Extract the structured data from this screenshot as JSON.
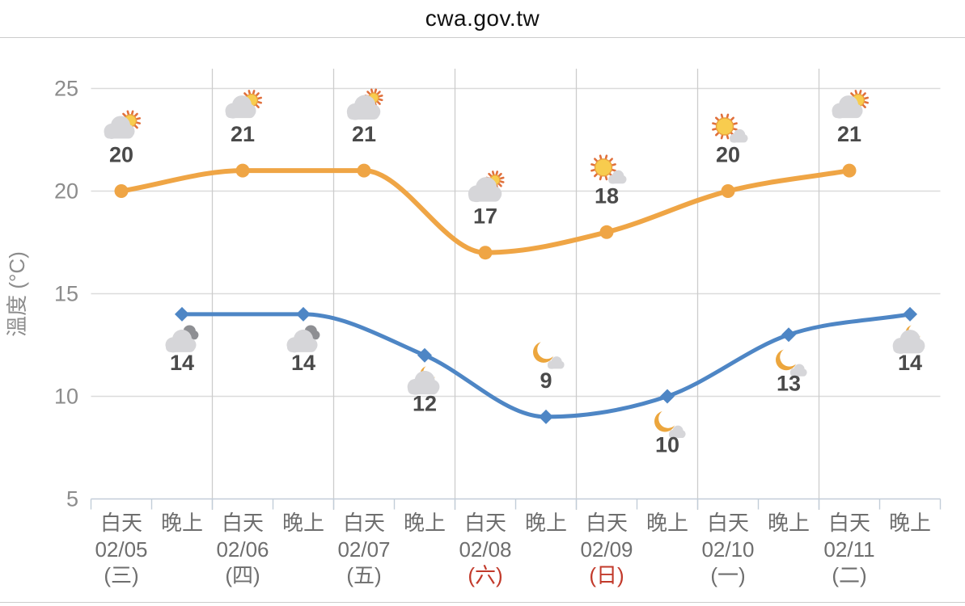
{
  "header": {
    "title": "cwa.gov.tw"
  },
  "colors": {
    "day_line": "#EFA545",
    "night_line": "#4E86C5",
    "grid_horizontal": "#DBDBDB",
    "grid_vertical": "#CCCCCC",
    "axis_line": "#C2CDD8",
    "ytick_text": "#8C8C8C",
    "xlabel_text": "#6E6E6E",
    "weekend_red": "#C23A2B",
    "value_text": "#4A4A4A",
    "sun_core": "#F8CC4E",
    "sun_rays": "#E0703C",
    "moon": "#ECA63D",
    "cloud_light": "#D6D6D9",
    "cloud_dark": "#8E8F93"
  },
  "chart_data": {
    "type": "line",
    "title": "cwa.gov.tw",
    "ylabel": "溫度 (°C)",
    "ylim": [
      5,
      25
    ],
    "yticks": [
      5,
      10,
      15,
      20,
      25
    ],
    "grid": "horizontal gridlines at yticks; vertical separators between days; no legend",
    "columns": [
      {
        "period": "白天",
        "date": "02/05",
        "weekday": "(三)",
        "weekend": false
      },
      {
        "period": "晚上"
      },
      {
        "period": "白天",
        "date": "02/06",
        "weekday": "(四)",
        "weekend": false
      },
      {
        "period": "晚上"
      },
      {
        "period": "白天",
        "date": "02/07",
        "weekday": "(五)",
        "weekend": false
      },
      {
        "period": "晚上"
      },
      {
        "period": "白天",
        "date": "02/08",
        "weekday": "(六)",
        "weekend": true
      },
      {
        "period": "晚上"
      },
      {
        "period": "白天",
        "date": "02/09",
        "weekday": "(日)",
        "weekend": true
      },
      {
        "period": "晚上"
      },
      {
        "period": "白天",
        "date": "02/10",
        "weekday": "(一)",
        "weekend": false
      },
      {
        "period": "晚上"
      },
      {
        "period": "白天",
        "date": "02/11",
        "weekday": "(二)",
        "weekend": false
      },
      {
        "period": "晚上"
      }
    ],
    "series": [
      {
        "name": "day-temperature",
        "label": "白天",
        "marker": "circle",
        "color": "#EFA545",
        "points": [
          {
            "col": 0,
            "value": 20,
            "icon": "sun-behind-cloud",
            "icon_side": "above"
          },
          {
            "col": 2,
            "value": 21,
            "icon": "sun-behind-cloud",
            "icon_side": "above"
          },
          {
            "col": 4,
            "value": 21,
            "icon": "sun-peek-cloud",
            "icon_side": "above"
          },
          {
            "col": 6,
            "value": 17,
            "icon": "sun-peek-cloud",
            "icon_side": "above"
          },
          {
            "col": 8,
            "value": 18,
            "icon": "sun-with-cloud",
            "icon_side": "above"
          },
          {
            "col": 10,
            "value": 20,
            "icon": "sun-with-cloud",
            "icon_side": "above"
          },
          {
            "col": 12,
            "value": 21,
            "icon": "sun-behind-cloud",
            "icon_side": "above"
          }
        ]
      },
      {
        "name": "night-temperature",
        "label": "晚上",
        "marker": "diamond",
        "color": "#4E86C5",
        "points": [
          {
            "col": 1,
            "value": 14,
            "icon": "cloudy",
            "icon_side": "below"
          },
          {
            "col": 3,
            "value": 14,
            "icon": "cloudy",
            "icon_side": "below"
          },
          {
            "col": 5,
            "value": 12,
            "icon": "moon-behind-cloud",
            "icon_side": "below"
          },
          {
            "col": 7,
            "value": 9,
            "icon": "moon-with-cloud",
            "icon_side": "above"
          },
          {
            "col": 9,
            "value": 10,
            "icon": "moon-with-cloud",
            "icon_side": "below"
          },
          {
            "col": 11,
            "value": 13,
            "icon": "moon-with-cloud",
            "icon_side": "below"
          },
          {
            "col": 13,
            "value": 14,
            "icon": "moon-behind-cloud",
            "icon_side": "below"
          }
        ]
      }
    ]
  }
}
